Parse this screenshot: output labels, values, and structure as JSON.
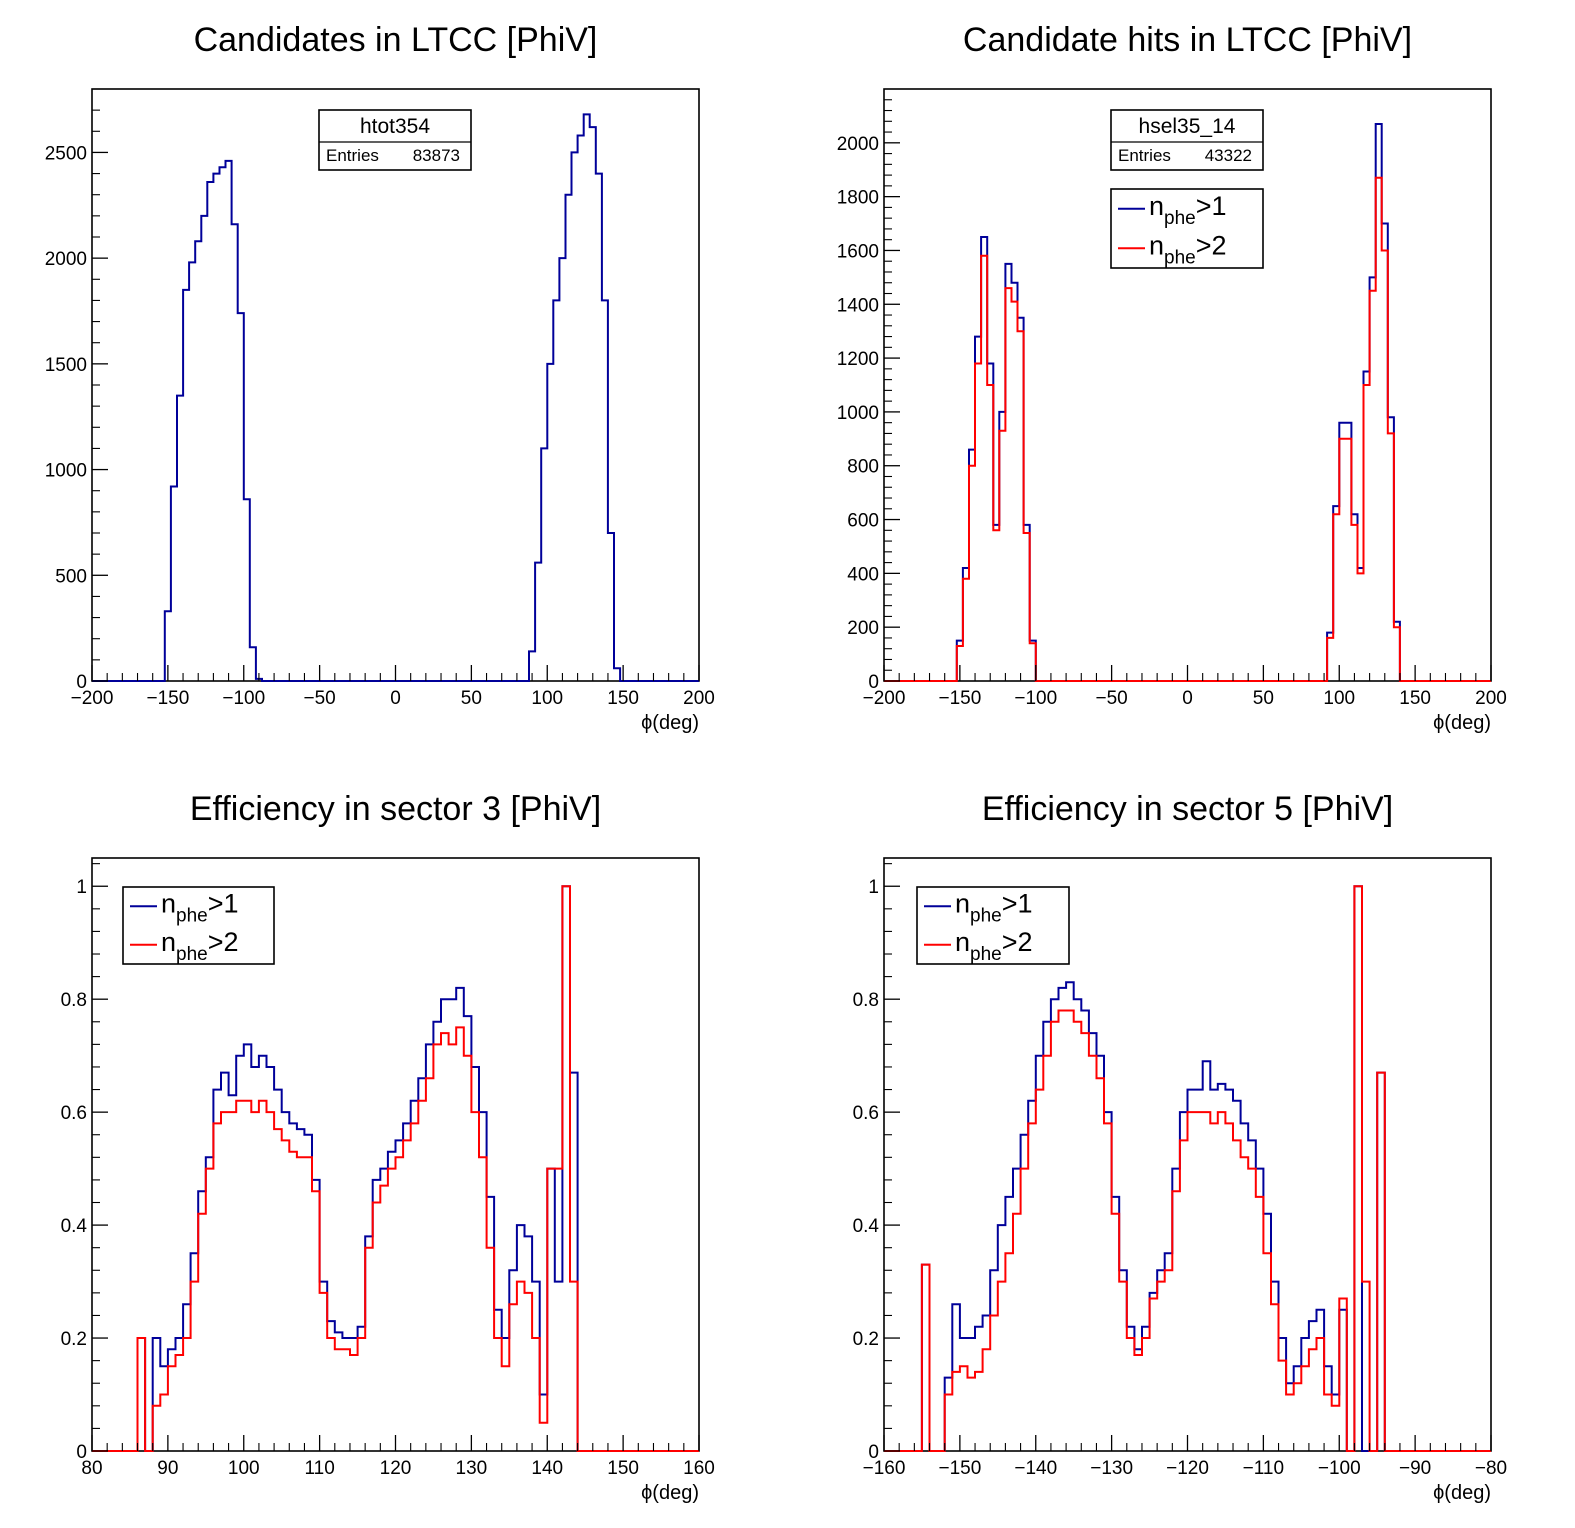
{
  "colors": {
    "blue": "#000099",
    "red": "#ff0000",
    "axis": "#000000"
  },
  "chart_data": [
    {
      "type": "histogram",
      "title": "Candidates in LTCC [PhiV]",
      "xlabel": "ϕ(deg)",
      "xlim": [
        -200,
        200
      ],
      "ylim": [
        0,
        2800
      ],
      "xticks": [
        -200,
        -150,
        -100,
        -50,
        0,
        50,
        100,
        150,
        200
      ],
      "xtick_labels": [
        "−200",
        "−150",
        "−100",
        "−50",
        "0",
        "50",
        "100",
        "150",
        "200"
      ],
      "yticks": [
        0,
        500,
        1000,
        1500,
        2000,
        2500
      ],
      "ytick_labels": [
        "0",
        "500",
        "1000",
        "1500",
        "2000",
        "2500"
      ],
      "stats_box": {
        "name": "htot354",
        "entries_label": "Entries",
        "entries_value": "83873"
      },
      "series": [
        {
          "color": "blue",
          "x": [
            -156,
            -152,
            -148,
            -144,
            -140,
            -136,
            -132,
            -128,
            -124,
            -120,
            -116,
            -112,
            -108,
            -104,
            -100,
            -96,
            -92,
            -88,
            -84,
            84,
            88,
            92,
            96,
            100,
            104,
            108,
            112,
            116,
            120,
            124,
            128,
            132,
            136,
            140,
            144,
            148
          ],
          "y": [
            0,
            330,
            920,
            1350,
            1850,
            1980,
            2080,
            2200,
            2360,
            2400,
            2430,
            2460,
            2160,
            1740,
            860,
            160,
            10,
            0,
            0,
            0,
            140,
            560,
            1100,
            1500,
            1800,
            2000,
            2300,
            2500,
            2580,
            2680,
            2620,
            2400,
            1800,
            700,
            60,
            0
          ]
        }
      ]
    },
    {
      "type": "histogram",
      "title": "Candidate hits in LTCC [PhiV]",
      "xlabel": "ϕ(deg)",
      "xlim": [
        -200,
        200
      ],
      "ylim": [
        0,
        2200
      ],
      "xticks": [
        -200,
        -150,
        -100,
        -50,
        0,
        50,
        100,
        150,
        200
      ],
      "xtick_labels": [
        "−200",
        "−150",
        "−100",
        "−50",
        "0",
        "50",
        "100",
        "150",
        "200"
      ],
      "yticks": [
        0,
        200,
        400,
        600,
        800,
        1000,
        1200,
        1400,
        1600,
        1800,
        2000
      ],
      "ytick_labels": [
        "0",
        "200",
        "400",
        "600",
        "800",
        "1000",
        "1200",
        "1400",
        "1600",
        "1800",
        "2000"
      ],
      "stats_box": {
        "name": "hsel35_14",
        "entries_label": "Entries",
        "entries_value": "43322"
      },
      "legend": [
        {
          "base": "n",
          "sub": "phe",
          "rest": ">1",
          "color": "blue"
        },
        {
          "base": "n",
          "sub": "phe",
          "rest": ">2",
          "color": "red"
        }
      ],
      "series": [
        {
          "color": "blue",
          "x": [
            -156,
            -152,
            -148,
            -144,
            -140,
            -136,
            -132,
            -128,
            -124,
            -120,
            -116,
            -112,
            -108,
            -104,
            -100,
            -96,
            -92,
            88,
            92,
            96,
            100,
            104,
            108,
            112,
            116,
            120,
            124,
            128,
            132,
            136,
            140
          ],
          "y": [
            0,
            150,
            420,
            860,
            1280,
            1650,
            1180,
            580,
            1000,
            1550,
            1480,
            1350,
            580,
            150,
            0,
            0,
            0,
            0,
            180,
            650,
            960,
            960,
            620,
            420,
            1150,
            1500,
            2070,
            1700,
            980,
            220,
            0
          ]
        },
        {
          "color": "red",
          "x": [
            -156,
            -152,
            -148,
            -144,
            -140,
            -136,
            -132,
            -128,
            -124,
            -120,
            -116,
            -112,
            -108,
            -104,
            -100,
            -96,
            -92,
            88,
            92,
            96,
            100,
            104,
            108,
            112,
            116,
            120,
            124,
            128,
            132,
            136,
            140
          ],
          "y": [
            0,
            130,
            380,
            800,
            1180,
            1580,
            1100,
            560,
            930,
            1460,
            1410,
            1300,
            550,
            140,
            0,
            0,
            0,
            0,
            160,
            620,
            900,
            900,
            580,
            400,
            1100,
            1450,
            1870,
            1600,
            920,
            200,
            0
          ]
        }
      ]
    },
    {
      "type": "histogram",
      "title": "Efficiency in sector 3 [PhiV]",
      "xlabel": "ϕ(deg)",
      "xlim": [
        80,
        160
      ],
      "ylim": [
        0,
        1.05
      ],
      "xticks": [
        80,
        90,
        100,
        110,
        120,
        130,
        140,
        150,
        160
      ],
      "xtick_labels": [
        "80",
        "90",
        "100",
        "110",
        "120",
        "130",
        "140",
        "150",
        "160"
      ],
      "yticks": [
        0,
        0.2,
        0.4,
        0.6,
        0.8,
        1
      ],
      "ytick_labels": [
        "0",
        "0.2",
        "0.4",
        "0.6",
        "0.8",
        "1"
      ],
      "legend": [
        {
          "base": "n",
          "sub": "phe",
          "rest": ">1",
          "color": "blue"
        },
        {
          "base": "n",
          "sub": "phe",
          "rest": ">2",
          "color": "red"
        }
      ],
      "series": [
        {
          "color": "blue",
          "x": [
            86,
            87,
            88,
            89,
            90,
            91,
            92,
            93,
            94,
            95,
            96,
            97,
            98,
            99,
            100,
            101,
            102,
            103,
            104,
            105,
            106,
            107,
            108,
            109,
            110,
            111,
            112,
            113,
            114,
            115,
            116,
            117,
            118,
            119,
            120,
            121,
            122,
            123,
            124,
            125,
            126,
            127,
            128,
            129,
            130,
            131,
            132,
            133,
            134,
            135,
            136,
            137,
            138,
            139,
            140,
            141,
            142,
            143,
            144
          ],
          "y": [
            0.2,
            0.0,
            0.2,
            0.15,
            0.18,
            0.2,
            0.26,
            0.35,
            0.46,
            0.52,
            0.64,
            0.67,
            0.63,
            0.7,
            0.72,
            0.68,
            0.7,
            0.68,
            0.64,
            0.6,
            0.58,
            0.57,
            0.56,
            0.48,
            0.3,
            0.23,
            0.21,
            0.2,
            0.2,
            0.22,
            0.38,
            0.48,
            0.5,
            0.53,
            0.55,
            0.58,
            0.62,
            0.66,
            0.72,
            0.76,
            0.8,
            0.8,
            0.82,
            0.77,
            0.68,
            0.6,
            0.45,
            0.25,
            0.2,
            0.32,
            0.4,
            0.38,
            0.3,
            0.1,
            0.5,
            0.3,
            1.0,
            0.67,
            0.0
          ]
        },
        {
          "color": "red",
          "x": [
            86,
            87,
            88,
            89,
            90,
            91,
            92,
            93,
            94,
            95,
            96,
            97,
            98,
            99,
            100,
            101,
            102,
            103,
            104,
            105,
            106,
            107,
            108,
            109,
            110,
            111,
            112,
            113,
            114,
            115,
            116,
            117,
            118,
            119,
            120,
            121,
            122,
            123,
            124,
            125,
            126,
            127,
            128,
            129,
            130,
            131,
            132,
            133,
            134,
            135,
            136,
            137,
            138,
            139,
            140,
            141,
            142,
            143,
            144
          ],
          "y": [
            0.2,
            0.0,
            0.08,
            0.1,
            0.15,
            0.17,
            0.2,
            0.3,
            0.42,
            0.5,
            0.58,
            0.6,
            0.6,
            0.62,
            0.62,
            0.6,
            0.62,
            0.6,
            0.57,
            0.55,
            0.53,
            0.52,
            0.52,
            0.46,
            0.28,
            0.2,
            0.18,
            0.18,
            0.17,
            0.2,
            0.36,
            0.44,
            0.47,
            0.5,
            0.52,
            0.55,
            0.58,
            0.62,
            0.66,
            0.72,
            0.74,
            0.72,
            0.75,
            0.7,
            0.6,
            0.52,
            0.36,
            0.2,
            0.15,
            0.26,
            0.3,
            0.28,
            0.2,
            0.05,
            0.5,
            0.5,
            1.0,
            0.3,
            0.0
          ]
        }
      ]
    },
    {
      "type": "histogram",
      "title": "Efficiency in sector 5 [PhiV]",
      "xlabel": "ϕ(deg)",
      "xlim": [
        -160,
        -80
      ],
      "ylim": [
        0,
        1.05
      ],
      "xticks": [
        -160,
        -150,
        -140,
        -130,
        -120,
        -110,
        -100,
        -90,
        -80
      ],
      "xtick_labels": [
        "−160",
        "−150",
        "−140",
        "−130",
        "−120",
        "−110",
        "−100",
        "−90",
        "−80"
      ],
      "yticks": [
        0,
        0.2,
        0.4,
        0.6,
        0.8,
        1
      ],
      "ytick_labels": [
        "0",
        "0.2",
        "0.4",
        "0.6",
        "0.8",
        "1"
      ],
      "legend": [
        {
          "base": "n",
          "sub": "phe",
          "rest": ">1",
          "color": "blue"
        },
        {
          "base": "n",
          "sub": "phe",
          "rest": ">2",
          "color": "red"
        }
      ],
      "series": [
        {
          "color": "blue",
          "x": [
            -155,
            -154,
            -153,
            -152,
            -151,
            -150,
            -149,
            -148,
            -147,
            -146,
            -145,
            -144,
            -143,
            -142,
            -141,
            -140,
            -139,
            -138,
            -137,
            -136,
            -135,
            -134,
            -133,
            -132,
            -131,
            -130,
            -129,
            -128,
            -127,
            -126,
            -125,
            -124,
            -123,
            -122,
            -121,
            -120,
            -119,
            -118,
            -117,
            -116,
            -115,
            -114,
            -113,
            -112,
            -111,
            -110,
            -109,
            -108,
            -107,
            -106,
            -105,
            -104,
            -103,
            -102,
            -101,
            -100,
            -99,
            -98,
            -97,
            -96,
            -95,
            -94
          ],
          "y": [
            0.33,
            0.0,
            0.0,
            0.13,
            0.26,
            0.2,
            0.2,
            0.22,
            0.24,
            0.32,
            0.4,
            0.45,
            0.5,
            0.56,
            0.62,
            0.7,
            0.76,
            0.8,
            0.82,
            0.83,
            0.8,
            0.78,
            0.74,
            0.7,
            0.6,
            0.45,
            0.32,
            0.22,
            0.18,
            0.22,
            0.28,
            0.32,
            0.35,
            0.5,
            0.6,
            0.64,
            0.64,
            0.69,
            0.64,
            0.65,
            0.64,
            0.62,
            0.58,
            0.55,
            0.5,
            0.42,
            0.3,
            0.2,
            0.12,
            0.15,
            0.2,
            0.23,
            0.25,
            0.15,
            0.1,
            0.25,
            0.0,
            1.0,
            0.0,
            0.0,
            0.67,
            0.0
          ]
        },
        {
          "color": "red",
          "x": [
            -155,
            -154,
            -153,
            -152,
            -151,
            -150,
            -149,
            -148,
            -147,
            -146,
            -145,
            -144,
            -143,
            -142,
            -141,
            -140,
            -139,
            -138,
            -137,
            -136,
            -135,
            -134,
            -133,
            -132,
            -131,
            -130,
            -129,
            -128,
            -127,
            -126,
            -125,
            -124,
            -123,
            -122,
            -121,
            -120,
            -119,
            -118,
            -117,
            -116,
            -115,
            -114,
            -113,
            -112,
            -111,
            -110,
            -109,
            -108,
            -107,
            -106,
            -105,
            -104,
            -103,
            -102,
            -101,
            -100,
            -99,
            -98,
            -97,
            -96,
            -95,
            -94
          ],
          "y": [
            0.33,
            0.0,
            0.0,
            0.1,
            0.14,
            0.15,
            0.13,
            0.14,
            0.18,
            0.24,
            0.3,
            0.35,
            0.42,
            0.5,
            0.58,
            0.64,
            0.7,
            0.76,
            0.78,
            0.78,
            0.76,
            0.74,
            0.7,
            0.66,
            0.58,
            0.42,
            0.3,
            0.2,
            0.17,
            0.2,
            0.27,
            0.3,
            0.32,
            0.46,
            0.55,
            0.6,
            0.6,
            0.6,
            0.58,
            0.6,
            0.58,
            0.55,
            0.52,
            0.5,
            0.45,
            0.35,
            0.26,
            0.16,
            0.1,
            0.12,
            0.15,
            0.18,
            0.2,
            0.1,
            0.08,
            0.27,
            0.0,
            1.0,
            0.3,
            0.0,
            0.67,
            0.0
          ]
        }
      ]
    }
  ]
}
